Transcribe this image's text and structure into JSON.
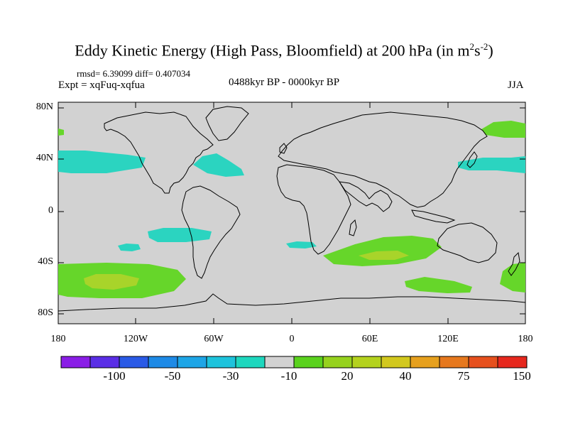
{
  "title": {
    "main": "Eddy Kinetic Energy (High Pass, Bloomfield) at 200 hPa (in m",
    "sup1": "2",
    "mid": "s",
    "sup2": "-2",
    "close": ")"
  },
  "stats": "rmsd= 6.39099 diff= 0.407034",
  "expt": "Expt = xqFuq-xqfua",
  "period": "0488kyr BP - 0000kyr BP",
  "season": "JJA",
  "lat_labels": [
    "80N",
    "40N",
    "0",
    "40S",
    "80S"
  ],
  "lon_labels": [
    "180",
    "120W",
    "60W",
    "0",
    "60E",
    "120E",
    "180"
  ],
  "colorbar": {
    "colors": [
      "#8a1ee6",
      "#5a2ee6",
      "#2a5ae6",
      "#1e8ae6",
      "#1ea5e6",
      "#1ec3dc",
      "#1ed7be",
      "#d2d2d2",
      "#5ad21e",
      "#96d21e",
      "#b4d21e",
      "#d2c81e",
      "#e6a01e",
      "#e6781e",
      "#e6501e",
      "#e6281e"
    ],
    "labels": [
      "-100",
      "-50",
      "-30",
      "-10",
      "20",
      "40",
      "75",
      "150"
    ]
  },
  "fill_colors": {
    "ocean_land": "#d2d2d2",
    "cyan": "#2bd4c0",
    "green": "#66d62a",
    "yellowgreen": "#a8d42a"
  }
}
